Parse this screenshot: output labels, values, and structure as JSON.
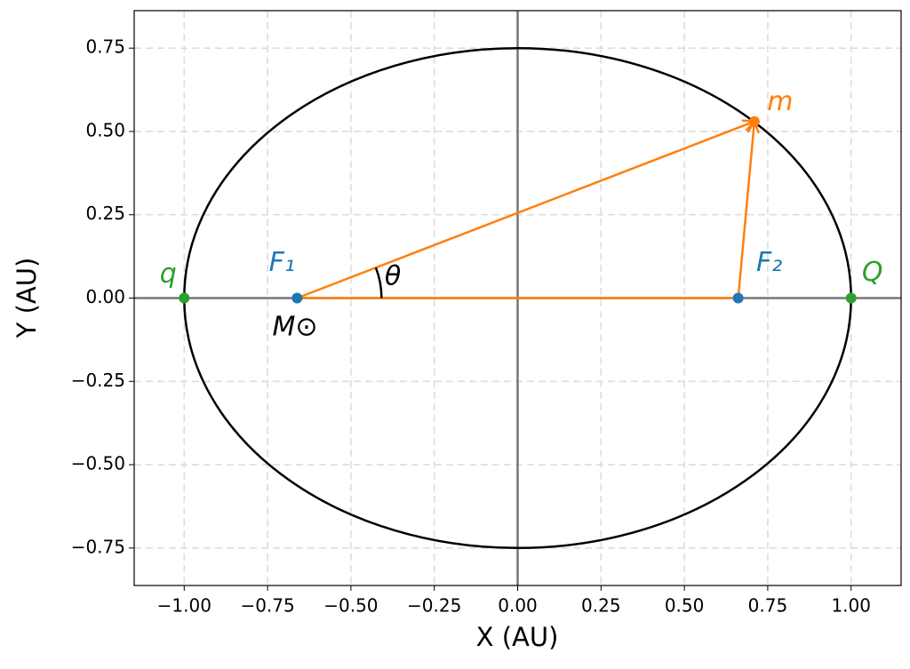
{
  "chart_data": {
    "type": "orbit",
    "x_label": "X (AU)",
    "y_label": "Y (AU)",
    "xlim": [
      -1.15,
      1.15
    ],
    "ylim": [
      -0.8625,
      0.8625
    ],
    "xticks": [
      {
        "value": -1,
        "label": "−1.00"
      },
      {
        "value": -0.75,
        "label": "−0.75"
      },
      {
        "value": -0.5,
        "label": "−0.50"
      },
      {
        "value": -0.25,
        "label": "−0.25"
      },
      {
        "value": 0,
        "label": "0.00"
      },
      {
        "value": 0.25,
        "label": "0.25"
      },
      {
        "value": 0.5,
        "label": "0.50"
      },
      {
        "value": 0.75,
        "label": "0.75"
      },
      {
        "value": 1,
        "label": "1.00"
      }
    ],
    "yticks": [
      {
        "value": -0.75,
        "label": "−0.75"
      },
      {
        "value": -0.5,
        "label": "−0.50"
      },
      {
        "value": -0.25,
        "label": "−0.25"
      },
      {
        "value": 0,
        "label": "0.00"
      },
      {
        "value": 0.25,
        "label": "0.25"
      },
      {
        "value": 0.5,
        "label": "0.50"
      },
      {
        "value": 0.75,
        "label": "0.75"
      }
    ],
    "grid": true,
    "ellipse": {
      "center_x": 0,
      "center_y": 0,
      "semi_major": 1,
      "semi_minor": 0.75,
      "color": "#000000"
    },
    "points": [
      {
        "label": "F₁",
        "x": -0.6614,
        "y": 0,
        "color": "#1f77b4"
      },
      {
        "label": "F₂",
        "x": 0.6614,
        "y": 0,
        "color": "#1f77b4"
      },
      {
        "label": "q",
        "x": -1,
        "y": 0,
        "color": "#2ca02c"
      },
      {
        "label": "Q",
        "x": 1,
        "y": 0,
        "color": "#2ca02c"
      },
      {
        "label": "m",
        "x": 0.71,
        "y": 0.53,
        "color": "#ff7f0e"
      }
    ],
    "vector_color": "#ff7f0e",
    "annotations": [
      "M⊙",
      "θ"
    ]
  }
}
